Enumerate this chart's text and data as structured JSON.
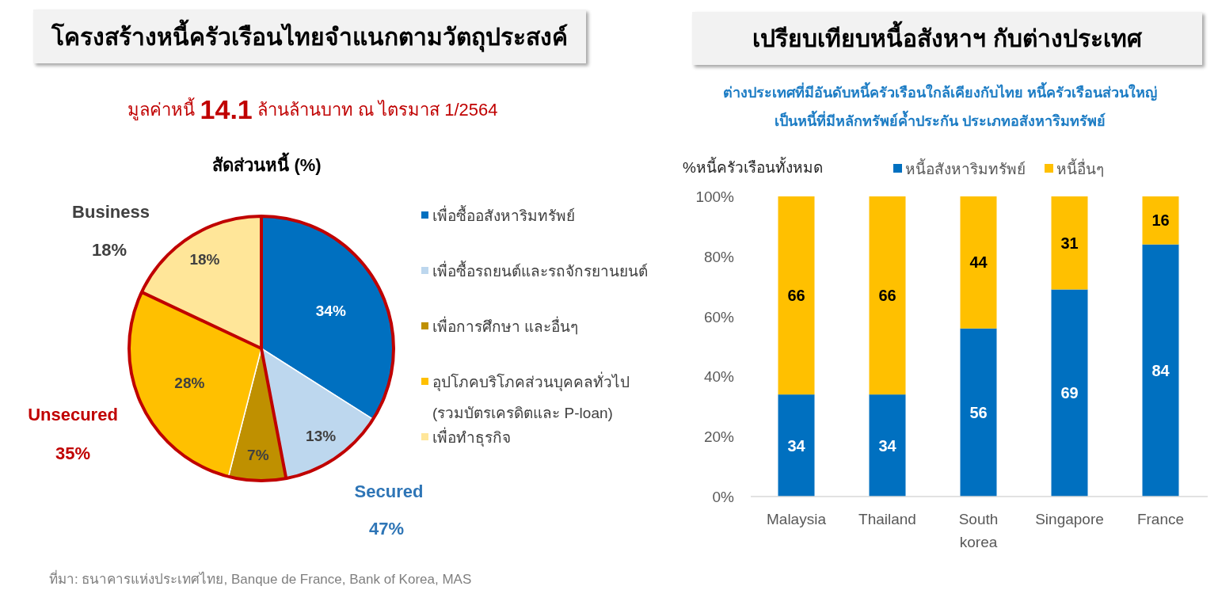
{
  "chart_data": [
    {
      "type": "pie",
      "title": "โครงสร้างหนี้ครัวเรือนไทยจำแนกตามวัตถุประสงค์",
      "subtitle": "มูลค่าหนี้ **14.1** ล้านล้านบาท ณ ไตรมาส 1/2564",
      "categories": [
        "เพื่อซื้ออสังหาริมทรัพย์",
        "เพื่อซื้อรถยนต์และรถจักรยานยนต์",
        "เพื่อการศึกษา และอื่นๆ",
        "อุปโภคบริโภคส่วนบุคคลทั่วไป (รวมบัตรเครดิตและ P-loan)",
        "เพื่อทำธุรกิจ"
      ],
      "values": [
        34,
        13,
        7,
        28,
        18
      ],
      "colors": [
        "#0070C0",
        "#BDD7EE",
        "#BF9000",
        "#FFC000",
        "#FFE699"
      ],
      "value_labels": [
        "34%",
        "13%",
        "7%",
        "28%",
        "18%"
      ],
      "legend": "right",
      "annotations": [
        "สัดส่วนหนี้ (%)",
        "Business",
        "18%",
        "Unsecured",
        "35%",
        "Secured",
        "47%",
        "ที่มา: ธนาคารแห่งประเทศไทย, Banque de France, Bank of Korea, MAS"
      ]
    },
    {
      "type": "bar",
      "stacked": true,
      "title": "เปรียบเทียบหนี้อสังหาฯ กับต่างประเทศ",
      "subtitle": "ต่างประเทศที่มีอันดับหนี้ครัวเรือนใกล้เคียงกับไทย หนี้ครัวเรือนส่วนใหญ่เป็นหนี้ที่มีหลักทรัพย์ค้ำประกัน ประเภทอสังหาริมทรัพย์",
      "ylabel": "%หนี้ครัวเรือนทั้งหมด",
      "categories": [
        "Malaysia",
        "Thailand",
        "South korea",
        "Singapore",
        "France"
      ],
      "series": [
        {
          "name": "หนี้อสังหาริมทรัพย์",
          "color": "#0070C0",
          "values": [
            34,
            34,
            56,
            69,
            84
          ]
        },
        {
          "name": "หนี้อื่นๆ",
          "color": "#FFC000",
          "values": [
            66,
            66,
            44,
            31,
            16
          ]
        }
      ],
      "ylim": [
        0,
        100
      ],
      "yticks": [
        {
          "value": 0,
          "label": "0%"
        },
        {
          "value": 20,
          "label": "20%"
        },
        {
          "value": 40,
          "label": "40%"
        },
        {
          "value": 60,
          "label": "60%"
        },
        {
          "value": 80,
          "label": "80%"
        },
        {
          "value": 100,
          "label": "100%"
        }
      ],
      "data_labels": true,
      "legend": "top"
    }
  ]
}
